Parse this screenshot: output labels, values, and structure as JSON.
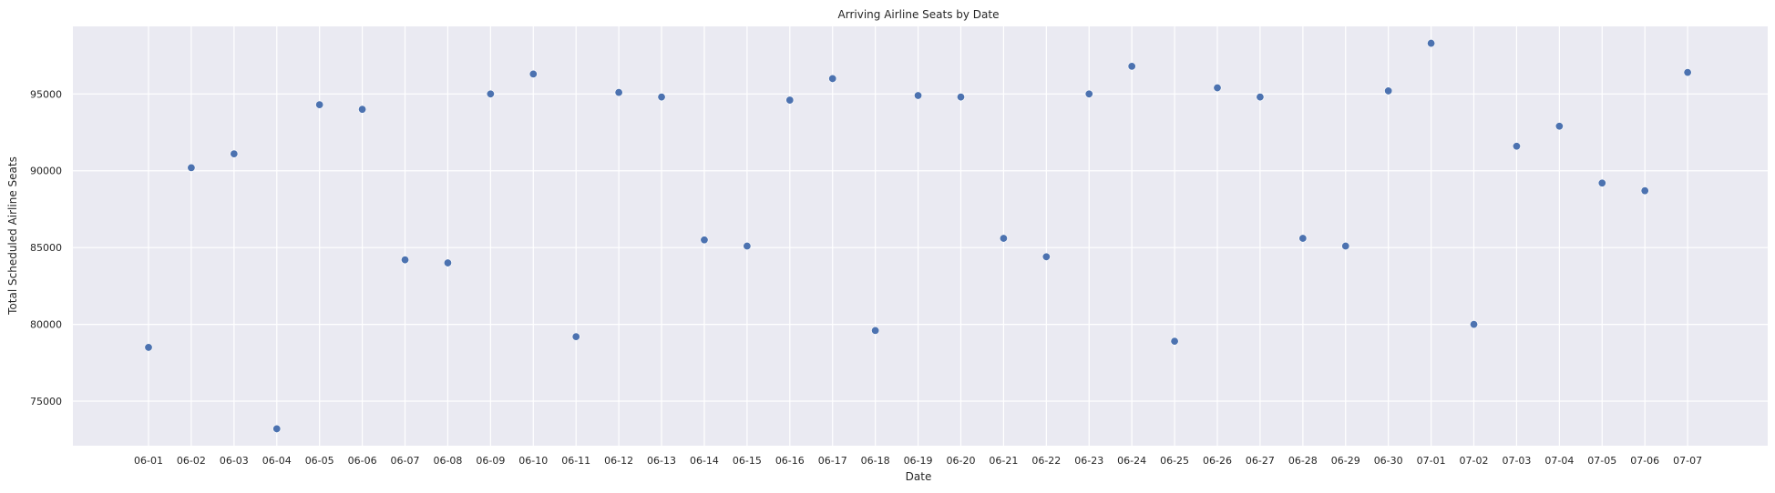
{
  "chart_data": {
    "type": "scatter",
    "title": "Arriving Airline Seats by Date",
    "xlabel": "Date",
    "ylabel": "Total Scheduled Airline Seats",
    "categories": [
      "06-01",
      "06-02",
      "06-03",
      "06-04",
      "06-05",
      "06-06",
      "06-07",
      "06-08",
      "06-09",
      "06-10",
      "06-11",
      "06-12",
      "06-13",
      "06-14",
      "06-15",
      "06-16",
      "06-17",
      "06-18",
      "06-19",
      "06-20",
      "06-21",
      "06-22",
      "06-23",
      "06-24",
      "06-25",
      "06-26",
      "06-27",
      "06-28",
      "06-29",
      "06-30",
      "07-01",
      "07-02",
      "07-03",
      "07-04",
      "07-05",
      "07-06",
      "07-07"
    ],
    "values": [
      78500,
      90200,
      91100,
      73200,
      94300,
      94000,
      84200,
      84000,
      95000,
      96300,
      79200,
      95100,
      94800,
      85500,
      85100,
      94600,
      96000,
      79600,
      94900,
      94800,
      85600,
      84400,
      95000,
      96800,
      78900,
      95400,
      94800,
      85600,
      85100,
      95200,
      98300,
      80000,
      91600,
      92900,
      89200,
      88700,
      96400
    ],
    "yticks": [
      75000,
      80000,
      85000,
      90000,
      95000
    ],
    "ylim": [
      72100,
      99400
    ],
    "grid": true,
    "colors": {
      "background": "#EAEAF2",
      "grid": "#FFFFFF",
      "marker": "#4C72B0"
    }
  }
}
